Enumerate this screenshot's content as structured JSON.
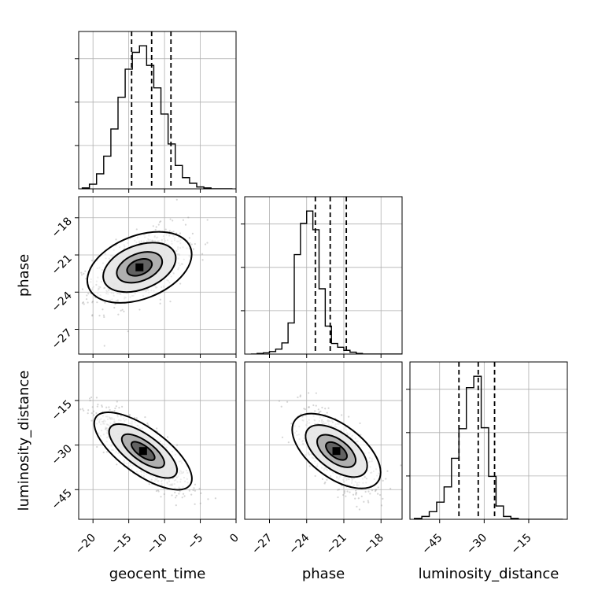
{
  "chart_data": {
    "type": "corner",
    "parameters": [
      "geocent_time",
      "phase",
      "luminosity_distance"
    ],
    "axis_labels": {
      "x": [
        "geocent_time",
        "phase",
        "luminosity_distance"
      ],
      "y": [
        "",
        "phase",
        "luminosity_distance"
      ]
    },
    "ranges": {
      "geocent_time": [
        -22,
        0
      ],
      "phase": [
        -29,
        -16.3
      ],
      "luminosity_distance": [
        -55,
        -2
      ]
    },
    "ticks": {
      "geocent_time": [
        -20,
        -15,
        -10,
        -5,
        0
      ],
      "phase": [
        -27,
        -24,
        -21,
        -18
      ],
      "luminosity_distance": [
        -45,
        -30,
        -15
      ]
    },
    "grid": true,
    "quantiles": {
      "geocent_time": [
        -14.6,
        -11.8,
        -9.1
      ],
      "phase": [
        -23.3,
        -22.1,
        -20.8
      ],
      "luminosity_distance": [
        -38.5,
        -32.0,
        -26.5
      ]
    },
    "histograms": {
      "geocent_time": {
        "bin_start": -21.5,
        "bin_width": 1.0,
        "counts": [
          1,
          5,
          16,
          35,
          64,
          98,
          128,
          146,
          153,
          132,
          108,
          80,
          48,
          25,
          12,
          6,
          2,
          1,
          0,
          0,
          0
        ]
      },
      "phase": {
        "bin_start": -28.5,
        "bin_width": 0.5,
        "counts": [
          0,
          1,
          2,
          4,
          8,
          18,
          50,
          160,
          210,
          230,
          200,
          105,
          45,
          17,
          11,
          6,
          3,
          1,
          0,
          0,
          0,
          0,
          0,
          0,
          0
        ]
      },
      "luminosity_distance": {
        "bin_start": -53.5,
        "bin_width": 2.5,
        "counts": [
          1,
          3,
          8,
          18,
          34,
          64,
          95,
          138,
          150,
          96,
          45,
          14,
          3,
          1,
          0,
          0,
          0,
          0,
          0,
          0
        ]
      }
    },
    "peaks_2d": {
      "phase_vs_geocent_time": [
        -13.5,
        -22.0
      ],
      "luminosity_distance_vs_geocent_time": [
        -13.0,
        -32.0
      ],
      "luminosity_distance_vs_phase": [
        -21.6,
        -32.0
      ]
    }
  }
}
